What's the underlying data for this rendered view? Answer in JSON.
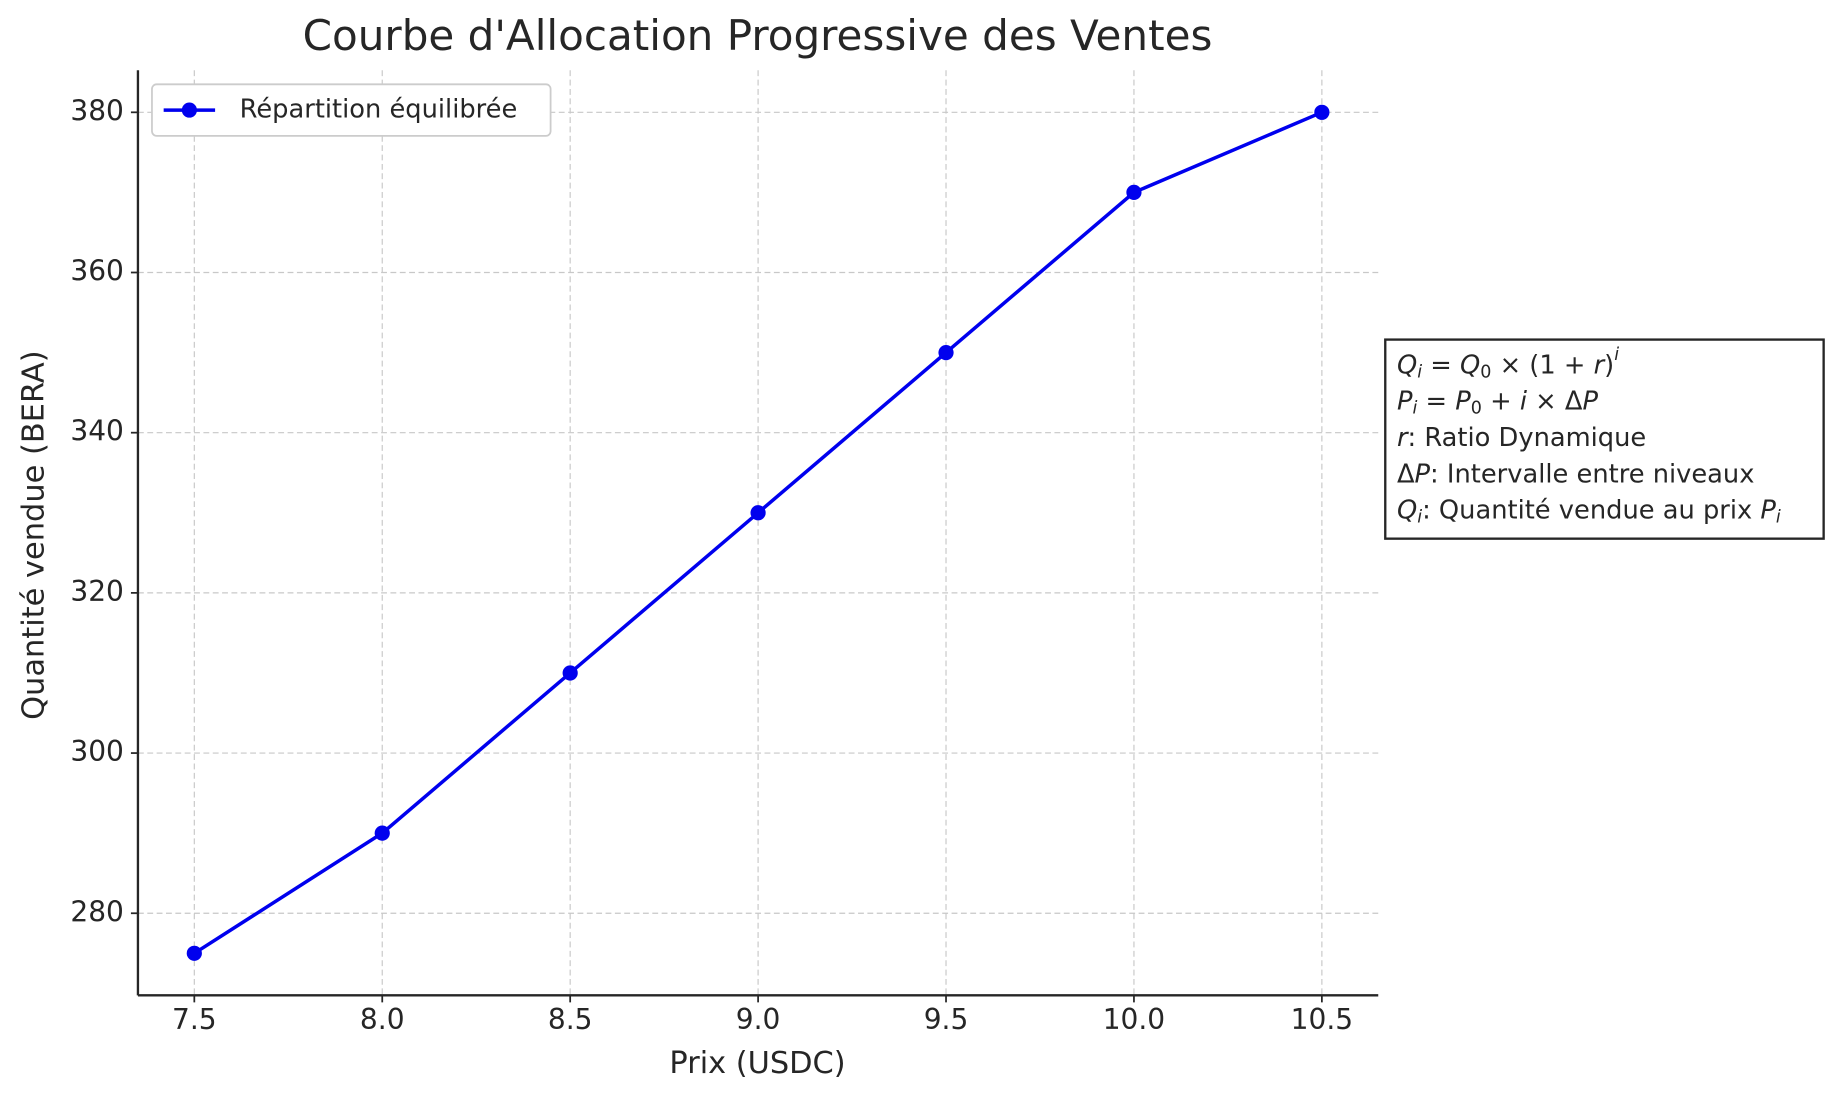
{
  "chart_data": {
    "type": "line",
    "title": "Courbe d'Allocation Progressive des Ventes",
    "xlabel": "Prix (USDC)",
    "ylabel": "Quantité vendue (BERA)",
    "x": [
      7.5,
      8.0,
      8.5,
      9.0,
      9.5,
      10.0,
      10.5
    ],
    "series": [
      {
        "name": "Répartition équilibrée",
        "color": "#0000ee",
        "values": [
          275,
          290,
          310,
          330,
          350,
          370,
          380
        ]
      }
    ],
    "xlim": [
      7.35,
      10.65
    ],
    "ylim": [
      269.75,
      385.25
    ],
    "xticks": [
      7.5,
      {
        "value": 8,
        "label": "8.0"
      },
      8.5,
      {
        "value": 9,
        "label": "9.0"
      },
      9.5,
      {
        "value": 10,
        "label": "10.0"
      },
      10.5
    ],
    "yticks": [
      280,
      300,
      320,
      340,
      360,
      380
    ],
    "grid": true,
    "legend": "upper left",
    "annotation": [
      [
        {
          "text": "Q",
          "style": "italic"
        },
        {
          "text": "i",
          "style": "sub-italic"
        },
        {
          "text": " = ",
          "style": "normal"
        },
        {
          "text": "Q",
          "style": "italic"
        },
        {
          "text": "0",
          "style": "sub"
        },
        {
          "text": " × (1 + ",
          "style": "normal"
        },
        {
          "text": "r",
          "style": "italic"
        },
        {
          "text": ")",
          "style": "normal"
        },
        {
          "text": "i",
          "style": "sup-italic"
        }
      ],
      [
        {
          "text": "P",
          "style": "italic"
        },
        {
          "text": "i",
          "style": "sub-italic"
        },
        {
          "text": " = ",
          "style": "normal"
        },
        {
          "text": "P",
          "style": "italic"
        },
        {
          "text": "0",
          "style": "sub"
        },
        {
          "text": " + ",
          "style": "normal"
        },
        {
          "text": "i",
          "style": "italic"
        },
        {
          "text": " × Δ",
          "style": "normal"
        },
        {
          "text": "P",
          "style": "italic"
        }
      ],
      [
        {
          "text": "r",
          "style": "italic"
        },
        {
          "text": ": Ratio Dynamique",
          "style": "normal"
        }
      ],
      [
        {
          "text": "Δ",
          "style": "normal"
        },
        {
          "text": "P",
          "style": "italic"
        },
        {
          "text": ": Intervalle entre niveaux",
          "style": "normal"
        }
      ],
      [
        {
          "text": "Q",
          "style": "italic"
        },
        {
          "text": "i",
          "style": "sub-italic"
        },
        {
          "text": ": Quantité vendue au prix ",
          "style": "normal"
        },
        {
          "text": "P",
          "style": "italic"
        },
        {
          "text": "i",
          "style": "sub-italic"
        }
      ]
    ]
  }
}
